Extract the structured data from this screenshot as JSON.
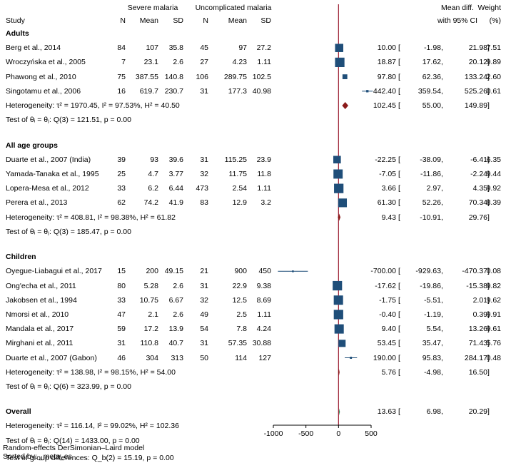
{
  "header": {
    "study": "Study",
    "severe": "Severe malaria",
    "uncomplicated": "Uncomplicated malaria",
    "n": "N",
    "mean": "Mean",
    "sd": "SD",
    "md_line1": "Mean diff.",
    "md_line2": "with 95% CI",
    "weight_line1": "Weight",
    "weight_line2": "(%)"
  },
  "groups": [
    {
      "title": "Adults",
      "rows": [
        {
          "study": "Berg et al., 2014",
          "n1": "84",
          "m1": "107",
          "sd1": "35.8",
          "n2": "45",
          "m2": "97",
          "sd2": "27.2",
          "es": "10.00",
          "lo": "-1.98",
          "hi": "21.98",
          "w": "7.51"
        },
        {
          "study": "Wroczyńska et al., 2005",
          "n1": "7",
          "m1": "23.1",
          "sd1": "2.6",
          "n2": "27",
          "m2": "4.23",
          "sd2": "1.11",
          "es": "18.87",
          "lo": "17.62",
          "hi": "20.12",
          "w": "9.89"
        },
        {
          "study": "Phawong et al., 2010",
          "n1": "75",
          "m1": "387.55",
          "sd1": "140.8",
          "n2": "106",
          "m2": "289.75",
          "sd2": "102.5",
          "es": "97.80",
          "lo": "62.36",
          "hi": "133.24",
          "w": "2.60"
        },
        {
          "study": "Singotamu et al., 2006",
          "n1": "16",
          "m1": "619.7",
          "sd1": "230.7",
          "n2": "31",
          "m2": "177.3",
          "sd2": "40.98",
          "es": "442.40",
          "lo": "359.54",
          "hi": "525.26",
          "w": "0.61"
        }
      ],
      "het": "Heterogeneity: τ² = 1970.45, I² = 97.53%, H² = 40.50",
      "test": "Test of θᵢ = θⱼ: Q(3) = 121.51, p = 0.00",
      "pooled": {
        "es": "102.45",
        "lo": "55.00",
        "hi": "149.89"
      }
    },
    {
      "title": "All age groups",
      "rows": [
        {
          "study": "Duarte et al., 2007 (India)",
          "n1": "39",
          "m1": "93",
          "sd1": "39.6",
          "n2": "31",
          "m2": "115.25",
          "sd2": "23.9",
          "es": "-22.25",
          "lo": "-38.09",
          "hi": "-6.41",
          "w": "6.35"
        },
        {
          "study": "Yamada-Tanaka et al., 1995",
          "n1": "25",
          "m1": "4.7",
          "sd1": "3.77",
          "n2": "32",
          "m2": "11.75",
          "sd2": "11.8",
          "es": "-7.05",
          "lo": "-11.86",
          "hi": "-2.24",
          "w": "9.44"
        },
        {
          "study": "Lopera-Mesa et al., 2012",
          "n1": "33",
          "m1": "6.2",
          "sd1": "6.44",
          "n2": "473",
          "m2": "2.54",
          "sd2": "1.11",
          "es": "3.66",
          "lo": "2.97",
          "hi": "4.35",
          "w": "9.92"
        },
        {
          "study": "Perera et al., 2013",
          "n1": "62",
          "m1": "74.2",
          "sd1": "41.9",
          "n2": "83",
          "m2": "12.9",
          "sd2": "3.2",
          "es": "61.30",
          "lo": "52.26",
          "hi": "70.34",
          "w": "8.39"
        }
      ],
      "het": "Heterogeneity: τ² = 408.81, I² = 98.38%, H² = 61.82",
      "test": "Test of θᵢ = θⱼ: Q(3) = 185.47, p = 0.00",
      "pooled": {
        "es": "9.43",
        "lo": "-10.91",
        "hi": "29.76"
      }
    },
    {
      "title": "Children",
      "rows": [
        {
          "study": "Oyegue-Liabagui et al., 2017",
          "n1": "15",
          "m1": "200",
          "sd1": "49.15",
          "n2": "21",
          "m2": "900",
          "sd2": "450",
          "es": "-700.00",
          "lo": "-929.63",
          "hi": "-470.37",
          "w": "0.08"
        },
        {
          "study": "Ong'echa et al., 2011",
          "n1": "80",
          "m1": "5.28",
          "sd1": "2.6",
          "n2": "31",
          "m2": "22.9",
          "sd2": "9.38",
          "es": "-17.62",
          "lo": "-19.86",
          "hi": "-15.38",
          "w": "9.82"
        },
        {
          "study": "Jakobsen et al., 1994",
          "n1": "33",
          "m1": "10.75",
          "sd1": "6.67",
          "n2": "32",
          "m2": "12.5",
          "sd2": "8.69",
          "es": "-1.75",
          "lo": "-5.51",
          "hi": "2.01",
          "w": "9.62"
        },
        {
          "study": "Nmorsi et al., 2010",
          "n1": "47",
          "m1": "2.1",
          "sd1": "2.6",
          "n2": "49",
          "m2": "2.5",
          "sd2": "1.11",
          "es": "-0.40",
          "lo": "-1.19",
          "hi": "0.39",
          "w": "9.91"
        },
        {
          "study": "Mandala et al., 2017",
          "n1": "59",
          "m1": "17.2",
          "sd1": "13.9",
          "n2": "54",
          "m2": "7.8",
          "sd2": "4.24",
          "es": "9.40",
          "lo": "5.54",
          "hi": "13.26",
          "w": "9.61"
        },
        {
          "study": "Mirghani et al., 2011",
          "n1": "31",
          "m1": "110.8",
          "sd1": "40.7",
          "n2": "31",
          "m2": "57.35",
          "sd2": "30.88",
          "es": "53.45",
          "lo": "35.47",
          "hi": "71.43",
          "w": "5.76"
        },
        {
          "study": "Duarte et al., 2007 (Gabon)",
          "n1": "46",
          "m1": "304",
          "sd1": "313",
          "n2": "50",
          "m2": "114",
          "sd2": "127",
          "es": "190.00",
          "lo": "95.83",
          "hi": "284.17",
          "w": "0.48"
        }
      ],
      "het": "Heterogeneity: τ² = 138.98, I² = 98.15%, H² = 54.00",
      "test": "Test of θᵢ = θⱼ: Q(6) = 323.99, p = 0.00",
      "pooled": {
        "es": "5.76",
        "lo": "-4.98",
        "hi": "16.50"
      }
    }
  ],
  "overall": {
    "title": "Overall",
    "het": "Heterogeneity: τ² = 116.14, I² = 99.02%, H² = 102.36",
    "test": "Test of θᵢ = θⱼ: Q(14) = 1433.00, p = 0.00",
    "group_diff": "Test of group differences: Q_b(2) = 15.19, p = 0.00",
    "pooled": {
      "es": "13.63",
      "lo": "6.98",
      "hi": "20.29"
    }
  },
  "footer": {
    "model": "Random-effects DerSimonian–Laird model",
    "sorted": "Sorted by: _meta_es"
  },
  "chart_data": {
    "type": "forest",
    "xlim": [
      -1000,
      500
    ],
    "xticks": [
      "-1000",
      "-500",
      "0",
      "500"
    ],
    "xtick_values": [
      -1000,
      -500,
      0,
      500
    ],
    "reference_line": 0,
    "colors": {
      "study": "#1f4e79",
      "pooled": "#8b1a1a",
      "overall": "#2e8b57",
      "ref": "#9b1c31",
      "ci": "#1f4e79"
    }
  }
}
